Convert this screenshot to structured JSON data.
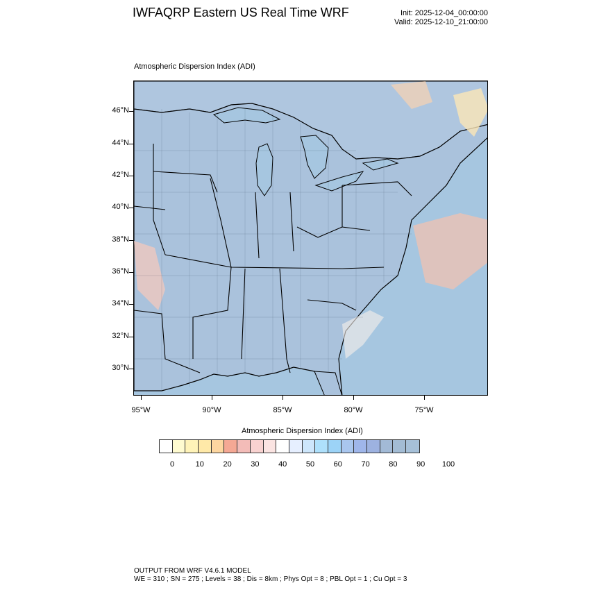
{
  "header": {
    "title": "IWFAQRP Eastern US Real Time WRF",
    "init": "Init: 2025-12-04_00:00:00",
    "valid": "Valid: 2025-12-10_21:00:00"
  },
  "map": {
    "subtitle": "Atmospheric Dispersion Index   (ADI)",
    "lat_labels": [
      "46°N",
      "44°N",
      "42°N",
      "40°N",
      "38°N",
      "36°N",
      "34°N",
      "32°N",
      "30°N"
    ],
    "lon_labels": [
      "95°W",
      "90°W",
      "85°W",
      "80°W",
      "75°W"
    ],
    "colors": {
      "land_fill": "#a9c3de",
      "ocean_fill": "#a6c6e0",
      "boundary": "#000000"
    }
  },
  "colorbar": {
    "title": "Atmospheric Dispersion Index  (ADI)",
    "labels": [
      "0",
      "10",
      "20",
      "30",
      "40",
      "50",
      "60",
      "70",
      "80",
      "90",
      "100"
    ],
    "colors": [
      "#ffffff",
      "#fffbd0",
      "#fff3b8",
      "#ffe9a8",
      "#fdd6a0",
      "#f5a894",
      "#f3bcb8",
      "#f8d2d0",
      "#fbe4e2",
      "#ffffff",
      "#e6efff",
      "#cde6fb",
      "#aee0fb",
      "#9cd3f7",
      "#a9c6ee",
      "#9fb6ea",
      "#9db2e0",
      "#a2bad6",
      "#a3bcd4",
      "#a6c0d8"
    ]
  },
  "footer": {
    "line1": "OUTPUT FROM WRF V4.6.1 MODEL",
    "line2": "WE = 310 ; SN = 275 ; Levels = 38 ; Dis = 8km ; Phys Opt = 8 ; PBL Opt = 1 ; Cu Opt = 3"
  }
}
